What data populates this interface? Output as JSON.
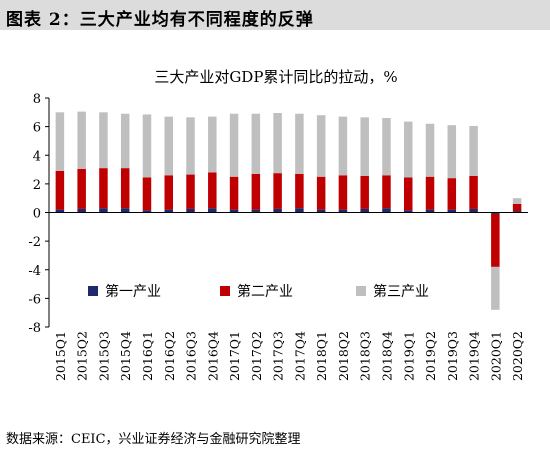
{
  "header": {
    "figure_title": "图表 2：三大产业均有不同程度的反弹"
  },
  "footer": {
    "source": "数据来源：CEIC，兴业证券经济与金融研究院整理"
  },
  "colors": {
    "primary": "#1f2a6b",
    "secondary": "#c00000",
    "tertiary": "#bfbfbf",
    "axis": "#000000"
  },
  "chart_data": {
    "type": "bar",
    "stacked": true,
    "title": "三大产业对GDP累计同比的拉动，%",
    "xlabel": "",
    "ylabel": "",
    "ylim": [
      -8,
      8
    ],
    "yticks": [
      8,
      6,
      4,
      2,
      0,
      -2,
      -4,
      -6,
      -8
    ],
    "grid": false,
    "legend_position": "bottom-inside",
    "categories": [
      "2015Q1",
      "2015Q2",
      "2015Q3",
      "2015Q4",
      "2016Q1",
      "2016Q2",
      "2016Q3",
      "2016Q4",
      "2017Q1",
      "2017Q2",
      "2017Q3",
      "2017Q4",
      "2018Q1",
      "2018Q2",
      "2018Q3",
      "2018Q4",
      "2019Q1",
      "2019Q2",
      "2019Q3",
      "2019Q4",
      "2020Q1",
      "2020Q2"
    ],
    "series": [
      {
        "name": "第一产业",
        "color": "#1f2a6b",
        "values": [
          0.2,
          0.25,
          0.3,
          0.3,
          0.15,
          0.2,
          0.25,
          0.3,
          0.2,
          0.2,
          0.25,
          0.3,
          0.2,
          0.2,
          0.25,
          0.3,
          0.15,
          0.2,
          0.2,
          0.25,
          -0.1,
          0.1
        ]
      },
      {
        "name": "第二产业",
        "color": "#c00000",
        "values": [
          2.7,
          2.8,
          2.8,
          2.8,
          2.3,
          2.4,
          2.4,
          2.5,
          2.3,
          2.5,
          2.5,
          2.4,
          2.3,
          2.4,
          2.3,
          2.3,
          2.3,
          2.3,
          2.2,
          2.3,
          -3.7,
          0.5
        ]
      },
      {
        "name": "第三产业",
        "color": "#bfbfbf",
        "values": [
          4.1,
          4.0,
          3.9,
          3.8,
          4.4,
          4.1,
          4.0,
          3.9,
          4.4,
          4.2,
          4.2,
          4.2,
          4.3,
          4.1,
          4.1,
          4.0,
          3.9,
          3.7,
          3.7,
          3.5,
          -3.0,
          0.4
        ]
      }
    ]
  }
}
